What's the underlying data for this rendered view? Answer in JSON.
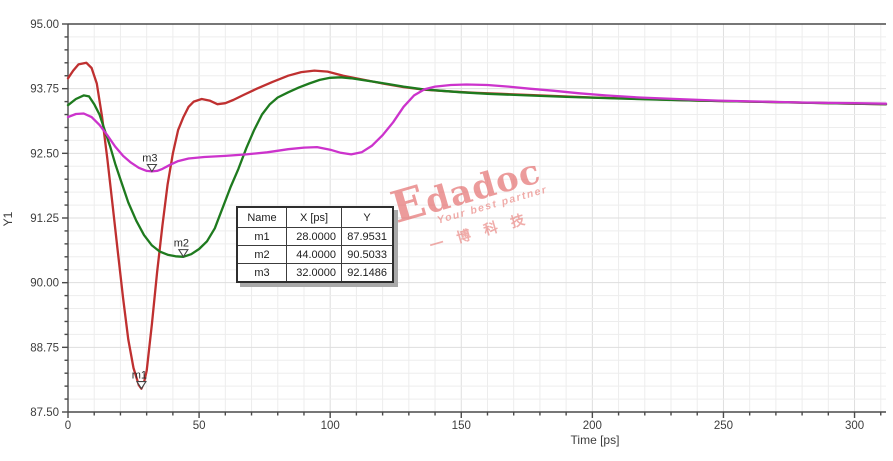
{
  "chart_data": {
    "type": "line",
    "title": "",
    "xlabel": "Time [ps]",
    "ylabel": "Y1",
    "grid": true,
    "legend": "none",
    "x_axis": {
      "min": 0,
      "max": 312,
      "major_tick_step": 50,
      "minor_tick_step": 10,
      "tick_values": [
        0,
        50,
        100,
        150,
        200,
        250,
        300
      ],
      "tick_labels": [
        "0",
        "50",
        "100",
        "150",
        "200",
        "250",
        "300"
      ]
    },
    "y_axis": {
      "min": 87.5,
      "max": 95.0,
      "major_tick_step": 1.25,
      "minor_tick_step": 0.25,
      "tick_values": [
        95.0,
        93.75,
        92.5,
        91.25,
        90.0,
        88.75,
        87.5
      ],
      "tick_labels": [
        "95.00",
        "93.75",
        "92.50",
        "91.25",
        "90.00",
        "88.75",
        "87.50"
      ]
    },
    "series": [
      {
        "name": "series-red",
        "color": "#bf3030",
        "points": [
          [
            0,
            93.95
          ],
          [
            2,
            94.1
          ],
          [
            4,
            94.22
          ],
          [
            7,
            94.25
          ],
          [
            9,
            94.15
          ],
          [
            11,
            93.85
          ],
          [
            13,
            93.2
          ],
          [
            15,
            92.4
          ],
          [
            17,
            91.5
          ],
          [
            19,
            90.6
          ],
          [
            21,
            89.7
          ],
          [
            23,
            88.9
          ],
          [
            25,
            88.35
          ],
          [
            27,
            88.02
          ],
          [
            28,
            87.95
          ],
          [
            29,
            88.07
          ],
          [
            30,
            88.3
          ],
          [
            32,
            89.2
          ],
          [
            34,
            90.2
          ],
          [
            36,
            91.1
          ],
          [
            38,
            91.9
          ],
          [
            40,
            92.5
          ],
          [
            42,
            92.95
          ],
          [
            44,
            93.2
          ],
          [
            46,
            93.4
          ],
          [
            48,
            93.5
          ],
          [
            51,
            93.55
          ],
          [
            54,
            93.52
          ],
          [
            57,
            93.45
          ],
          [
            60,
            93.47
          ],
          [
            63,
            93.53
          ],
          [
            67,
            93.63
          ],
          [
            72,
            93.75
          ],
          [
            78,
            93.88
          ],
          [
            84,
            94.0
          ],
          [
            89,
            94.07
          ],
          [
            94,
            94.1
          ],
          [
            99,
            94.08
          ],
          [
            105,
            94.0
          ],
          [
            112,
            93.93
          ],
          [
            120,
            93.85
          ],
          [
            128,
            93.78
          ],
          [
            136,
            93.73
          ],
          [
            145,
            93.7
          ],
          [
            155,
            93.67
          ],
          [
            165,
            93.65
          ],
          [
            180,
            93.62
          ],
          [
            200,
            93.58
          ],
          [
            220,
            93.55
          ],
          [
            240,
            93.52
          ],
          [
            260,
            93.5
          ],
          [
            280,
            93.48
          ],
          [
            300,
            93.46
          ],
          [
            312,
            93.45
          ]
        ]
      },
      {
        "name": "series-green",
        "color": "#1e7a1e",
        "points": [
          [
            0,
            93.43
          ],
          [
            3,
            93.55
          ],
          [
            6,
            93.62
          ],
          [
            8,
            93.6
          ],
          [
            10,
            93.45
          ],
          [
            12,
            93.25
          ],
          [
            14,
            92.95
          ],
          [
            16,
            92.65
          ],
          [
            18,
            92.3
          ],
          [
            20,
            92.0
          ],
          [
            23,
            91.55
          ],
          [
            26,
            91.2
          ],
          [
            29,
            90.92
          ],
          [
            32,
            90.72
          ],
          [
            35,
            90.6
          ],
          [
            38,
            90.54
          ],
          [
            41,
            90.51
          ],
          [
            44,
            90.5
          ],
          [
            47,
            90.55
          ],
          [
            50,
            90.65
          ],
          [
            53,
            90.8
          ],
          [
            56,
            91.05
          ],
          [
            59,
            91.45
          ],
          [
            62,
            91.85
          ],
          [
            65,
            92.2
          ],
          [
            68,
            92.6
          ],
          [
            71,
            92.95
          ],
          [
            74,
            93.25
          ],
          [
            77,
            93.45
          ],
          [
            80,
            93.58
          ],
          [
            84,
            93.68
          ],
          [
            88,
            93.77
          ],
          [
            92,
            93.85
          ],
          [
            96,
            93.92
          ],
          [
            100,
            93.96
          ],
          [
            104,
            93.97
          ],
          [
            108,
            93.95
          ],
          [
            112,
            93.92
          ],
          [
            117,
            93.88
          ],
          [
            122,
            93.84
          ],
          [
            128,
            93.79
          ],
          [
            135,
            93.74
          ],
          [
            142,
            93.71
          ],
          [
            150,
            93.68
          ],
          [
            160,
            93.65
          ],
          [
            175,
            93.62
          ],
          [
            190,
            93.59
          ],
          [
            210,
            93.56
          ],
          [
            230,
            93.53
          ],
          [
            250,
            93.51
          ],
          [
            270,
            93.49
          ],
          [
            290,
            93.47
          ],
          [
            312,
            93.45
          ]
        ]
      },
      {
        "name": "series-magenta",
        "color": "#cc33cc",
        "points": [
          [
            0,
            93.2
          ],
          [
            3,
            93.26
          ],
          [
            6,
            93.27
          ],
          [
            9,
            93.2
          ],
          [
            12,
            93.05
          ],
          [
            15,
            92.85
          ],
          [
            18,
            92.63
          ],
          [
            21,
            92.45
          ],
          [
            24,
            92.32
          ],
          [
            27,
            92.22
          ],
          [
            30,
            92.16
          ],
          [
            32,
            92.15
          ],
          [
            34,
            92.16
          ],
          [
            36,
            92.2
          ],
          [
            39,
            92.28
          ],
          [
            42,
            92.35
          ],
          [
            46,
            92.4
          ],
          [
            52,
            92.43
          ],
          [
            60,
            92.45
          ],
          [
            68,
            92.48
          ],
          [
            76,
            92.52
          ],
          [
            84,
            92.58
          ],
          [
            90,
            92.61
          ],
          [
            95,
            92.62
          ],
          [
            100,
            92.57
          ],
          [
            104,
            92.51
          ],
          [
            108,
            92.48
          ],
          [
            112,
            92.52
          ],
          [
            116,
            92.65
          ],
          [
            120,
            92.85
          ],
          [
            124,
            93.1
          ],
          [
            128,
            93.4
          ],
          [
            132,
            93.62
          ],
          [
            136,
            93.74
          ],
          [
            140,
            93.79
          ],
          [
            146,
            93.82
          ],
          [
            152,
            93.83
          ],
          [
            160,
            93.82
          ],
          [
            168,
            93.79
          ],
          [
            176,
            93.75
          ],
          [
            185,
            93.71
          ],
          [
            195,
            93.66
          ],
          [
            205,
            93.62
          ],
          [
            218,
            93.58
          ],
          [
            232,
            93.55
          ],
          [
            248,
            93.52
          ],
          [
            265,
            93.5
          ],
          [
            282,
            93.48
          ],
          [
            300,
            93.47
          ],
          [
            312,
            93.46
          ]
        ]
      }
    ],
    "markers": [
      {
        "label": "m1",
        "x": 28,
        "y": 87.9531
      },
      {
        "label": "m2",
        "x": 44,
        "y": 90.5033
      },
      {
        "label": "m3",
        "x": 32,
        "y": 92.1486
      }
    ]
  },
  "marker_table": {
    "headers": [
      "Name",
      "X [ps]",
      "Y"
    ],
    "rows": [
      {
        "name": "m1",
        "x": "28.0000",
        "y": "87.9531"
      },
      {
        "name": "m2",
        "x": "44.0000",
        "y": "90.5033"
      },
      {
        "name": "m3",
        "x": "32.0000",
        "y": "92.1486"
      }
    ]
  },
  "watermark": {
    "line1": "Edadoc",
    "line2": "Your best partner",
    "line3": "一博科技",
    "color": "#e87a76"
  },
  "style": {
    "grid_minor_color": "#ededed",
    "grid_major_color": "#dedede",
    "axis_color": "#4a4a4a",
    "tick_label_color": "#3d3d3d"
  }
}
